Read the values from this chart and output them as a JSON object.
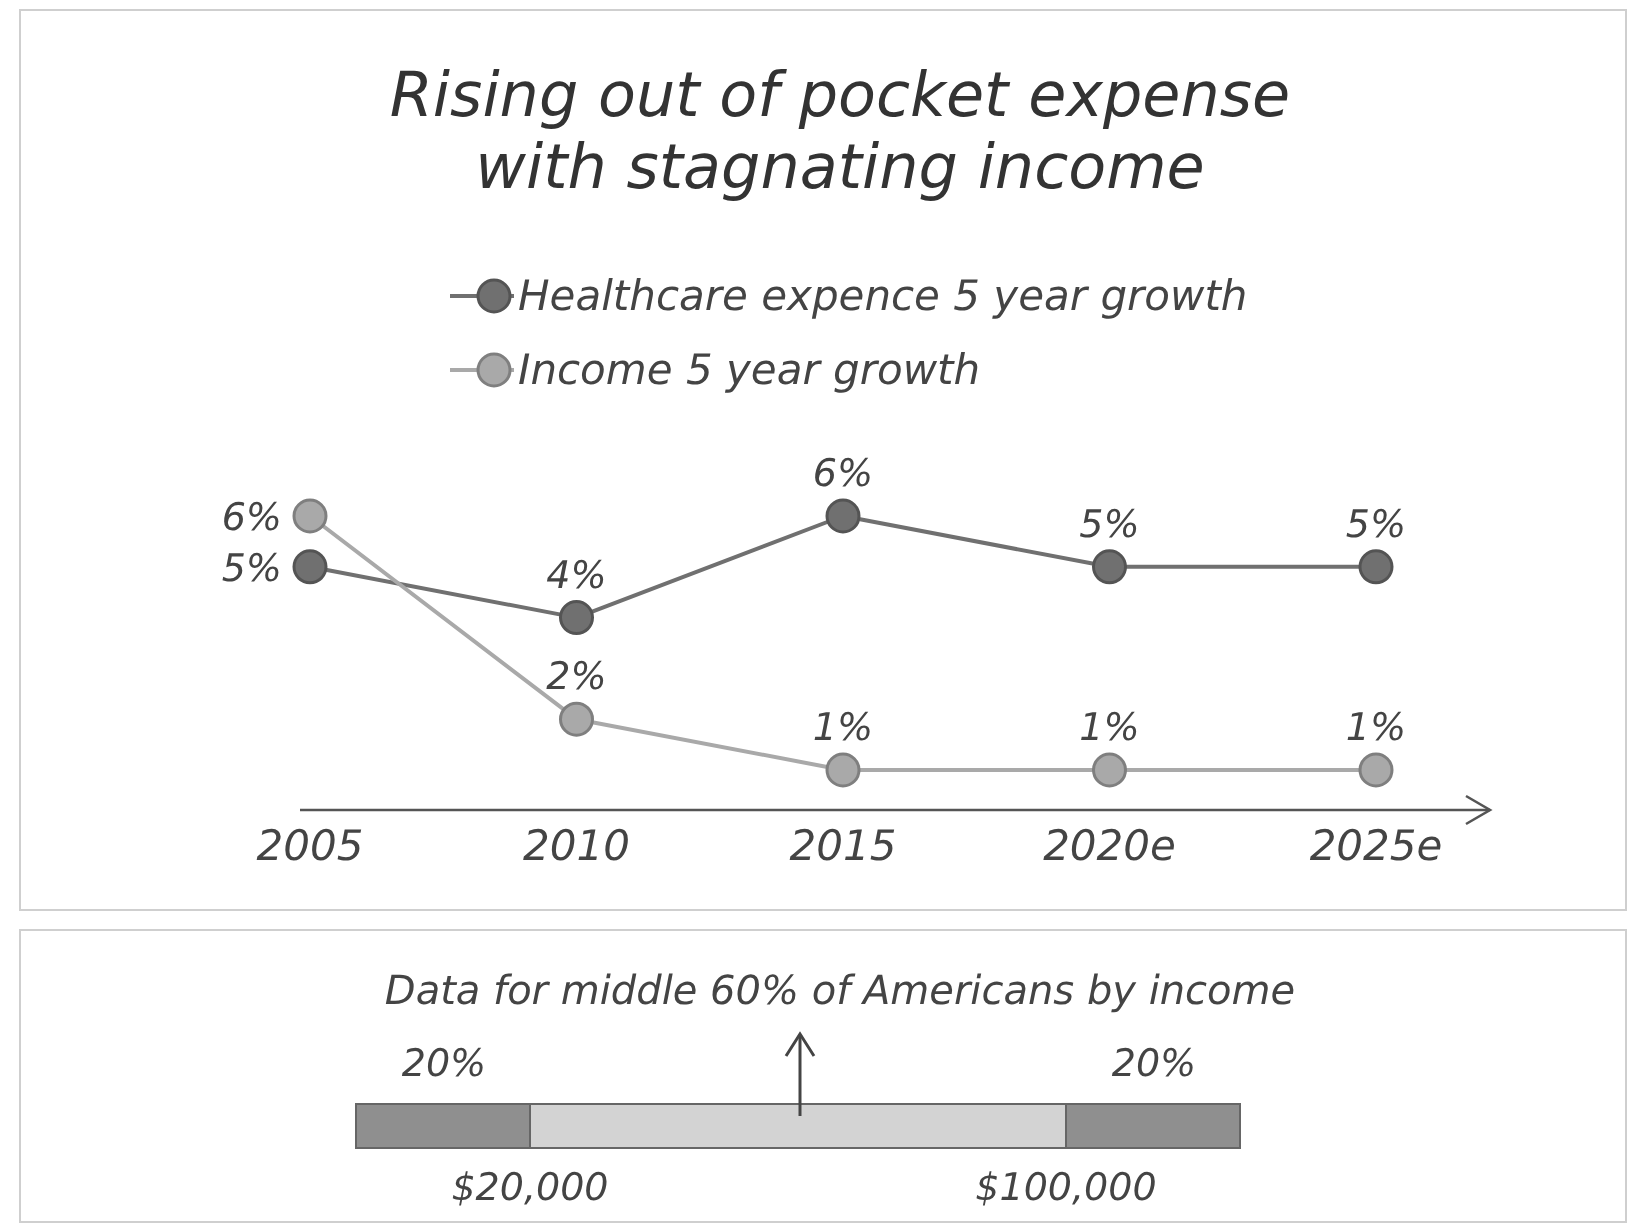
{
  "chart_data": [
    {
      "type": "line",
      "title": "Rising out of pocket expense with stagnating income",
      "categories": [
        "2005",
        "2010",
        "2015",
        "2020e",
        "2025e"
      ],
      "tick_labels": "x",
      "marker": "circle",
      "legend": "top",
      "series": [
        {
          "name": "Healthcare expence 5 year growth",
          "color": "#707070",
          "values": [
            5,
            4,
            6,
            5,
            5
          ],
          "value_labels": [
            "5%",
            "4%",
            "6%",
            "5%",
            "5%"
          ]
        },
        {
          "name": "Income 5 year growth",
          "color": "#a9a9a9",
          "values": [
            6,
            2,
            1,
            1,
            1
          ],
          "value_labels": [
            "6%",
            "2%",
            "1%",
            "1%",
            "1%"
          ]
        }
      ]
    },
    {
      "type": "other",
      "title": "Data for middle 60% of Americans by income",
      "annotations": [
        "20%",
        "20%",
        "$20,000",
        "$100,000"
      ]
    }
  ]
}
